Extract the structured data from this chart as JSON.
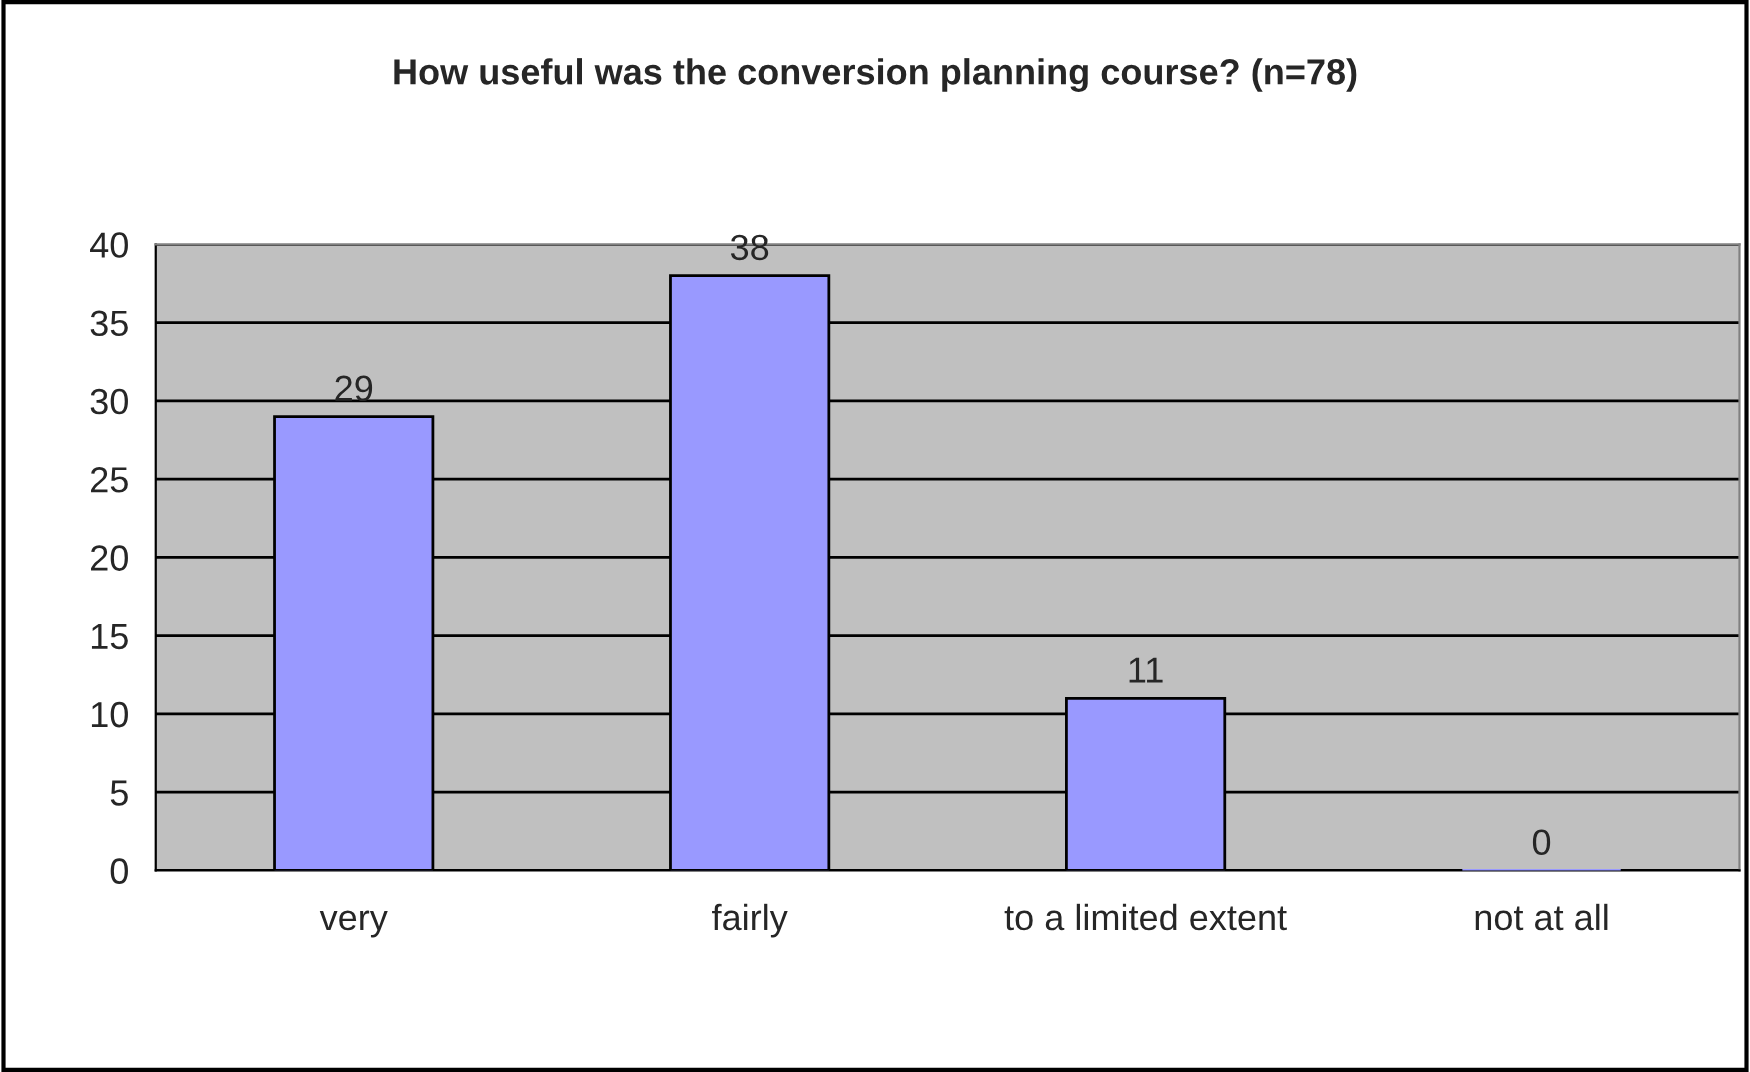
{
  "chart_data": {
    "type": "bar",
    "title": "How useful was the conversion planning course? (n=78)",
    "categories": [
      "very",
      "fairly",
      "to a limited extent",
      "not at all"
    ],
    "values": [
      29,
      38,
      11,
      0
    ],
    "color": "#9999ff",
    "ylim": [
      0,
      40
    ],
    "yticks": [
      0,
      5,
      10,
      15,
      20,
      25,
      30,
      35,
      40
    ],
    "grid": "y",
    "data_labels": true,
    "legend": false
  }
}
